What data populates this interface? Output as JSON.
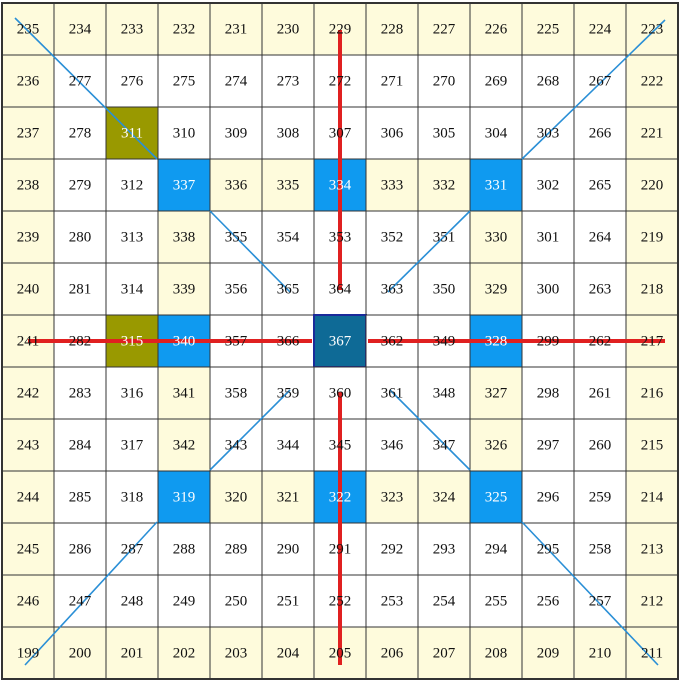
{
  "grid": {
    "rows": [
      [
        235,
        234,
        233,
        232,
        231,
        230,
        229,
        228,
        227,
        226,
        225,
        224,
        223
      ],
      [
        236,
        277,
        276,
        275,
        274,
        273,
        272,
        271,
        270,
        269,
        268,
        267,
        222
      ],
      [
        237,
        278,
        311,
        310,
        309,
        308,
        307,
        306,
        305,
        304,
        303,
        266,
        221
      ],
      [
        238,
        279,
        312,
        337,
        336,
        335,
        334,
        333,
        332,
        331,
        302,
        265,
        220
      ],
      [
        239,
        280,
        313,
        338,
        355,
        354,
        353,
        352,
        351,
        330,
        301,
        264,
        219
      ],
      [
        240,
        281,
        314,
        339,
        356,
        365,
        364,
        363,
        350,
        329,
        300,
        263,
        218
      ],
      [
        241,
        282,
        315,
        340,
        357,
        366,
        367,
        362,
        349,
        328,
        299,
        262,
        217
      ],
      [
        242,
        283,
        316,
        341,
        358,
        359,
        360,
        361,
        348,
        327,
        298,
        261,
        216
      ],
      [
        243,
        284,
        317,
        342,
        343,
        344,
        345,
        346,
        347,
        326,
        297,
        260,
        215
      ],
      [
        244,
        285,
        318,
        319,
        320,
        321,
        322,
        323,
        324,
        325,
        296,
        259,
        214
      ],
      [
        245,
        286,
        287,
        288,
        289,
        290,
        291,
        292,
        293,
        294,
        295,
        258,
        213
      ],
      [
        246,
        247,
        248,
        249,
        250,
        251,
        252,
        253,
        254,
        255,
        256,
        257,
        212
      ],
      [
        199,
        200,
        201,
        202,
        203,
        204,
        205,
        206,
        207,
        208,
        209,
        210,
        211
      ]
    ]
  }
}
